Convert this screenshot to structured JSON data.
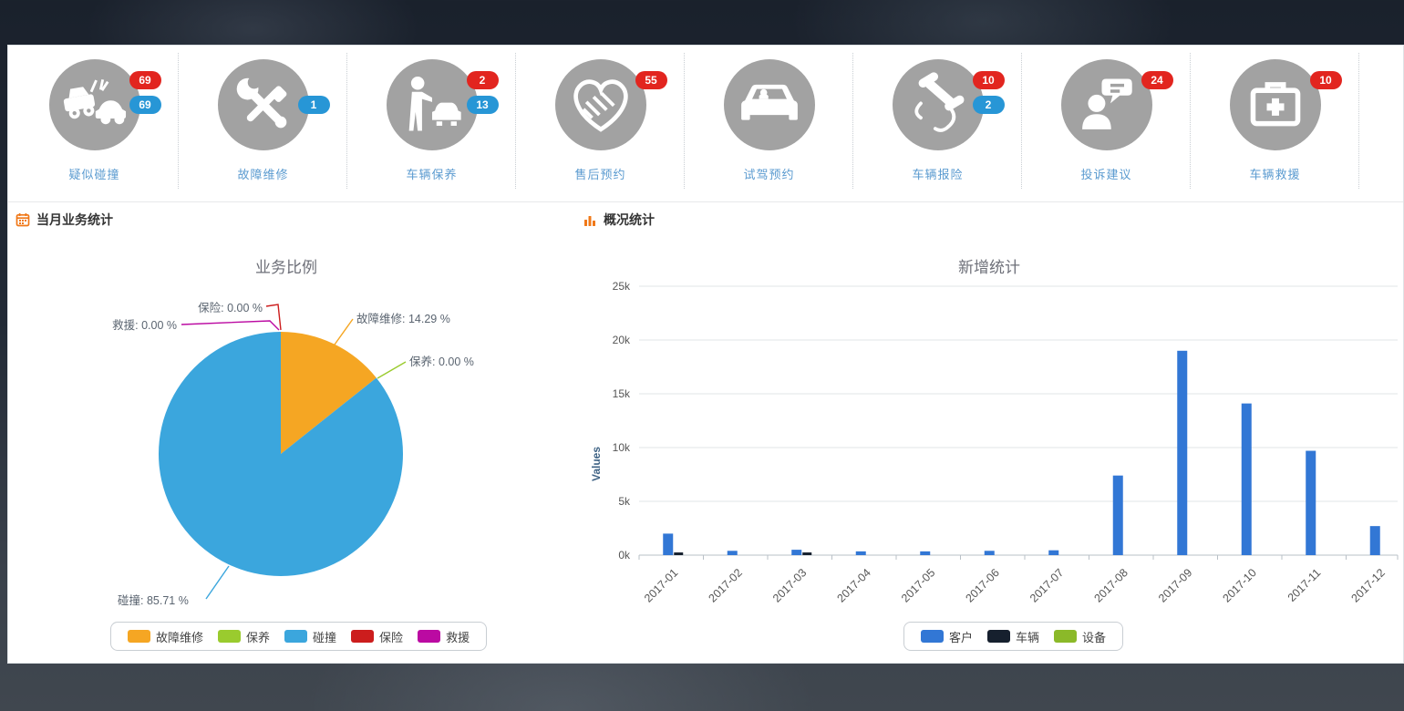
{
  "quick_actions": {
    "items": [
      {
        "label": "疑似碰撞",
        "icon": "collision-icon",
        "badges": [
          {
            "color": "red",
            "value": "69"
          },
          {
            "color": "blue",
            "value": "69"
          }
        ]
      },
      {
        "label": "故障维修",
        "icon": "repair-icon",
        "badges": [
          {
            "color": "blue",
            "value": "1"
          }
        ]
      },
      {
        "label": "车辆保养",
        "icon": "maintenance-icon",
        "badges": [
          {
            "color": "red",
            "value": "2"
          },
          {
            "color": "blue",
            "value": "13"
          }
        ]
      },
      {
        "label": "售后预约",
        "icon": "handshake-icon",
        "badges": [
          {
            "color": "red",
            "value": "55"
          }
        ]
      },
      {
        "label": "试驾预约",
        "icon": "test-drive-icon",
        "badges": []
      },
      {
        "label": "车辆报险",
        "icon": "phone-icon",
        "badges": [
          {
            "color": "red",
            "value": "10"
          },
          {
            "color": "blue",
            "value": "2"
          }
        ]
      },
      {
        "label": "投诉建议",
        "icon": "feedback-icon",
        "badges": [
          {
            "color": "red",
            "value": "24"
          }
        ]
      },
      {
        "label": "车辆救援",
        "icon": "rescue-icon",
        "badges": [
          {
            "color": "red",
            "value": "10"
          }
        ]
      }
    ]
  },
  "left_section": {
    "header": "当月业务统计"
  },
  "right_section": {
    "header": "概况统计"
  },
  "colors": {
    "badge_red": "#e2251f",
    "badge_blue": "#2796d6",
    "icon_circle_gray": "#a2a2a2",
    "icon_label_blue": "#5b9bd0",
    "header_accent_orange": "#f07818",
    "panel_white": "#ffffff"
  },
  "chart_data": [
    {
      "type": "pie",
      "title": "业务比例",
      "slices": [
        {
          "label": "故障维修",
          "value": 14.29,
          "color": "#f5a623"
        },
        {
          "label": "保养",
          "value": 0,
          "color": "#9acb2e"
        },
        {
          "label": "碰撞",
          "value": 85.71,
          "color": "#3ba6dd"
        },
        {
          "label": "保险",
          "value": 0,
          "color": "#cc1d1d"
        },
        {
          "label": "救援",
          "value": 0,
          "color": "#bb0aa2"
        }
      ],
      "callouts": [
        "故障维修: 14.29 %",
        "保养: 0.00 %",
        "碰撞: 85.71 %",
        "保险: 0.00 %",
        "救援: 0.00 %"
      ],
      "legend_position": "bottom"
    },
    {
      "type": "bar",
      "title": "新增统计",
      "ylabel": "Values",
      "ylim": [
        0,
        25000
      ],
      "yticks": [
        "0k",
        "5k",
        "10k",
        "15k",
        "20k",
        "25k"
      ],
      "grid": true,
      "categories": [
        "2017-01",
        "2017-02",
        "2017-03",
        "2017-04",
        "2017-05",
        "2017-06",
        "2017-07",
        "2017-08",
        "2017-09",
        "2017-10",
        "2017-11",
        "2017-12"
      ],
      "series": [
        {
          "name": "客户",
          "color": "#3277d5",
          "values": [
            2000,
            400,
            500,
            350,
            350,
            400,
            450,
            7400,
            19000,
            14100,
            9700,
            2700
          ]
        },
        {
          "name": "车辆",
          "color": "#16202e",
          "values": [
            250,
            0,
            250,
            0,
            0,
            0,
            0,
            0,
            0,
            0,
            0,
            0
          ]
        },
        {
          "name": "设备",
          "color": "#8bb929",
          "values": [
            0,
            0,
            0,
            0,
            0,
            0,
            0,
            0,
            0,
            0,
            0,
            0
          ]
        }
      ],
      "legend_position": "bottom"
    }
  ]
}
